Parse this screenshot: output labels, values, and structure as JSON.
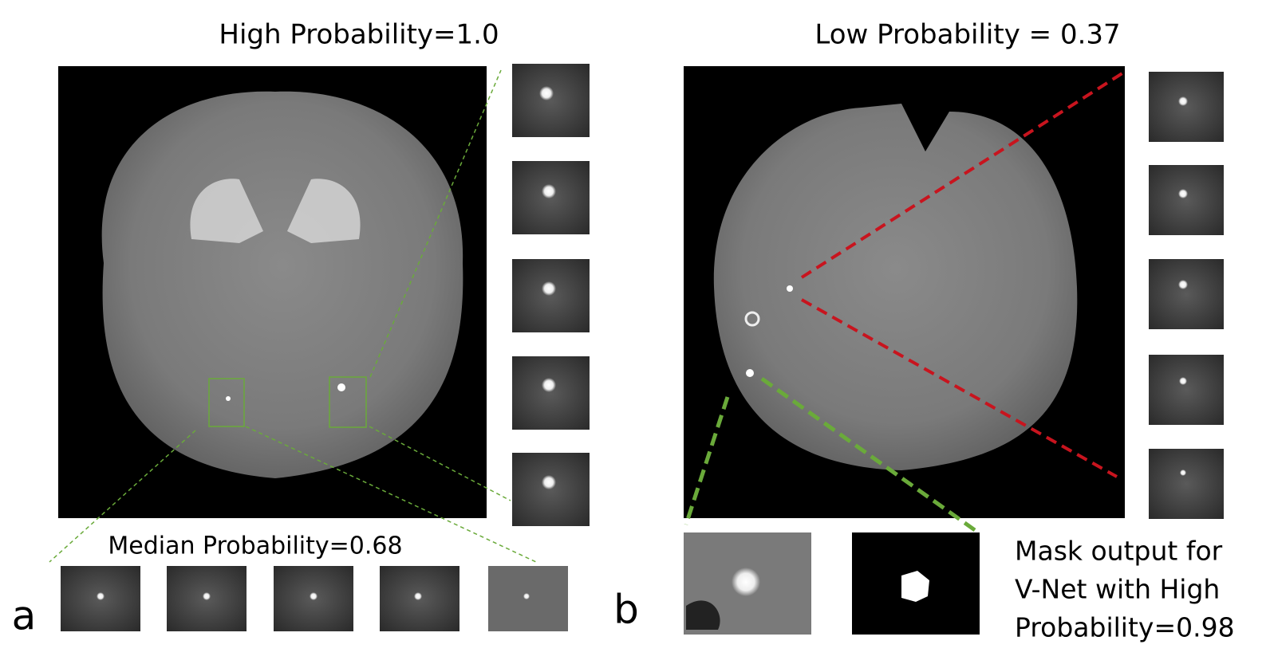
{
  "panels": [
    {
      "label": "a",
      "title": "High Probability=1.0",
      "subtitle": "Median Probability=0.68"
    },
    {
      "label": "b",
      "title": "Low Probability = 0.37",
      "caption": [
        "Mask output for",
        "V-Net with High",
        "Probability=0.98"
      ]
    }
  ]
}
